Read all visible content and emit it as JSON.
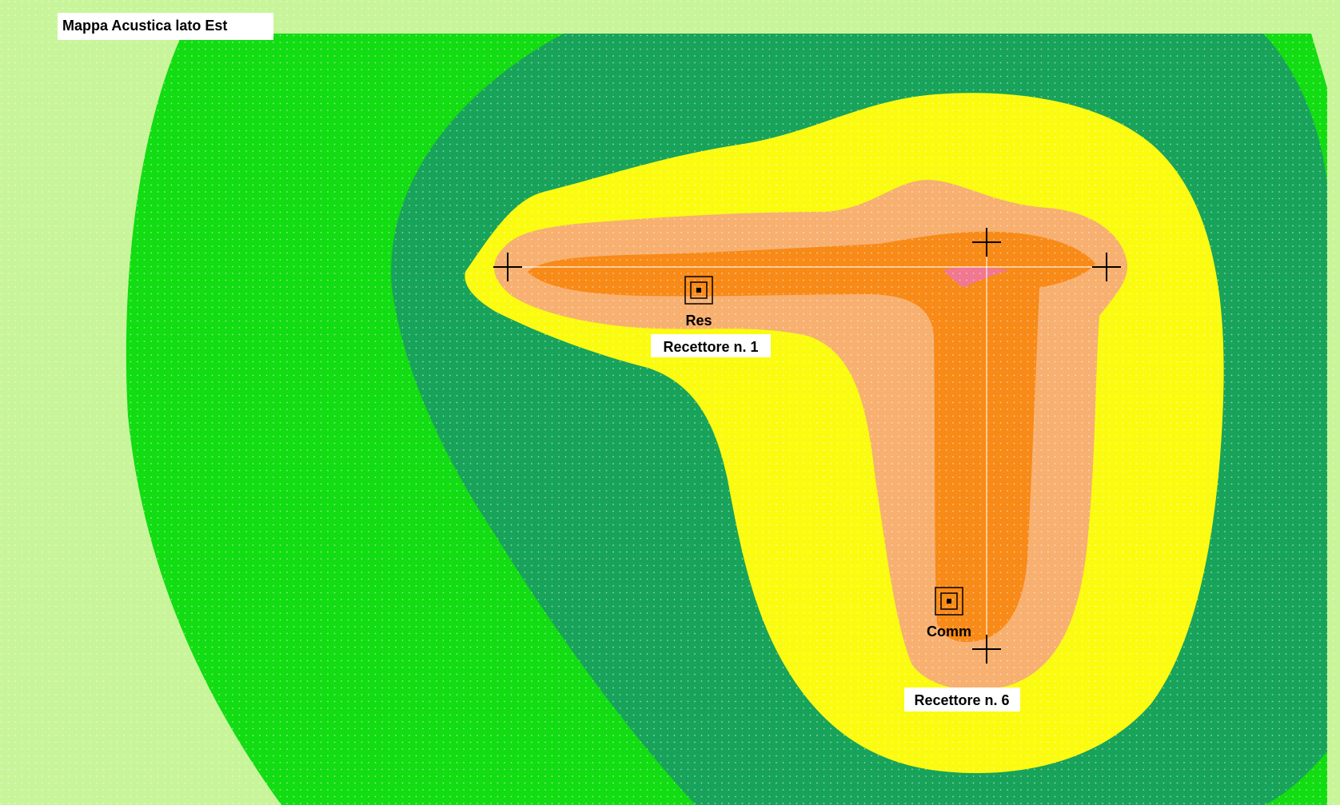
{
  "map": {
    "title": "Mappa Acustica lato Est",
    "receptors": [
      {
        "name": "Recettore n. 1",
        "type_label": "Res"
      },
      {
        "name": "Recettore n. 6",
        "type_label": "Comm"
      }
    ],
    "zone_colors": {
      "background": "#c8f59a",
      "band_green": "#12dc12",
      "band_dark_green": "#18a35a",
      "band_yellow": "#fbfb10",
      "band_peach": "#f7b070",
      "band_orange": "#f88a18",
      "band_pink": "#f07890"
    },
    "source_marker_icon": "crosshair-icon",
    "receptor_marker_icon": "receptor-square-icon"
  }
}
